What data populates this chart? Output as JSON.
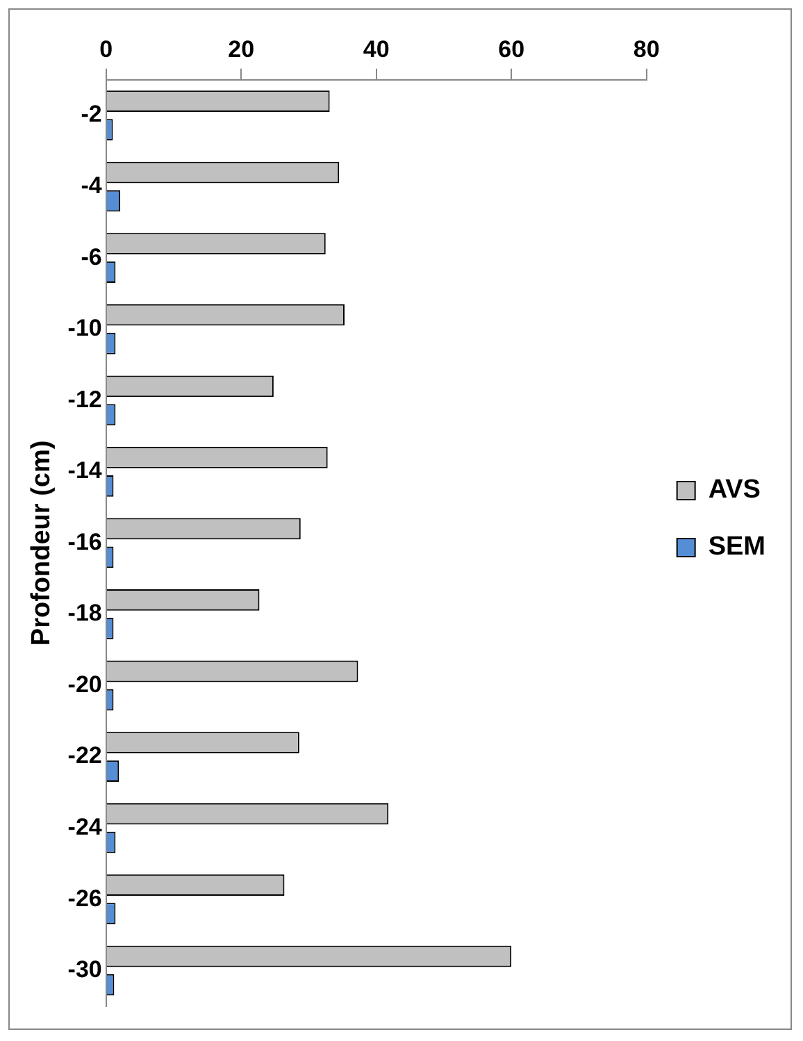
{
  "chart_data": {
    "type": "bar",
    "orientation": "horizontal",
    "ylabel": "Profondeur (cm)",
    "categories": [
      "-2",
      "-4",
      "-6",
      "-10",
      "-12",
      "-14",
      "-16",
      "-18",
      "-20",
      "-22",
      "-24",
      "-26",
      "-30"
    ],
    "series": [
      {
        "name": "AVS",
        "color": "#c0c0c0",
        "values": [
          33.1,
          34.5,
          32.5,
          35.3,
          24.8,
          32.8,
          28.8,
          22.7,
          37.3,
          28.6,
          41.8,
          26.4,
          60
        ]
      },
      {
        "name": "SEM",
        "color": "#558ed5",
        "values": [
          1.0,
          2.1,
          1.4,
          1.4,
          1.4,
          1.1,
          1.1,
          1.1,
          1.1,
          1.9,
          1.4,
          1.4,
          1.2
        ]
      }
    ],
    "xlim": [
      0,
      80
    ],
    "xticks": [
      0,
      20,
      40,
      60,
      80
    ],
    "grid": false,
    "legend": "right"
  }
}
